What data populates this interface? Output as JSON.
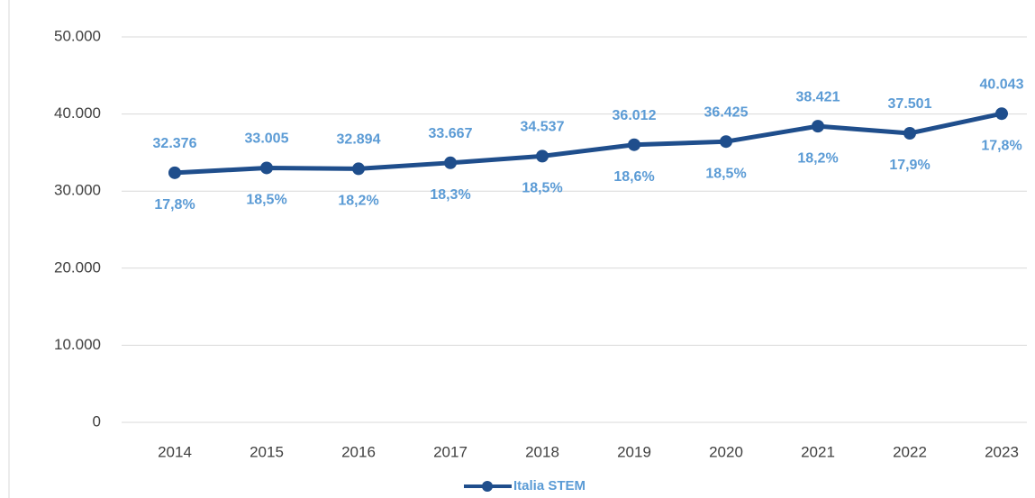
{
  "chart_data": {
    "type": "line",
    "categories": [
      "2014",
      "2015",
      "2016",
      "2017",
      "2018",
      "2019",
      "2020",
      "2021",
      "2022",
      "2023"
    ],
    "series": [
      {
        "name": "Italia STEM",
        "color": "#1f4e8c",
        "values": [
          32376,
          33005,
          32894,
          33667,
          34537,
          36012,
          36425,
          38421,
          37501,
          40043
        ],
        "value_labels": [
          "32.376",
          "33.005",
          "32.894",
          "33.667",
          "34.537",
          "36.012",
          "36.425",
          "38.421",
          "37.501",
          "40.043"
        ],
        "shares": [
          17.8,
          18.5,
          18.2,
          18.3,
          18.5,
          18.6,
          18.5,
          18.2,
          17.9,
          17.8
        ],
        "share_labels": [
          "17,8%",
          "18,5%",
          "18,2%",
          "18,3%",
          "18,5%",
          "18,6%",
          "18,5%",
          "18,2%",
          "17,9%",
          "17,8%"
        ]
      }
    ],
    "ylim": [
      0,
      50000
    ],
    "yticks": [
      0,
      {
        "value": 10000,
        "label": "10.000"
      },
      {
        "value": 20000,
        "label": "20.000"
      },
      {
        "value": 30000,
        "label": "30.000"
      },
      {
        "value": 40000,
        "label": "40.000"
      },
      {
        "value": 50000,
        "label": "50.000"
      }
    ],
    "grid": true,
    "legend": "bottom"
  }
}
